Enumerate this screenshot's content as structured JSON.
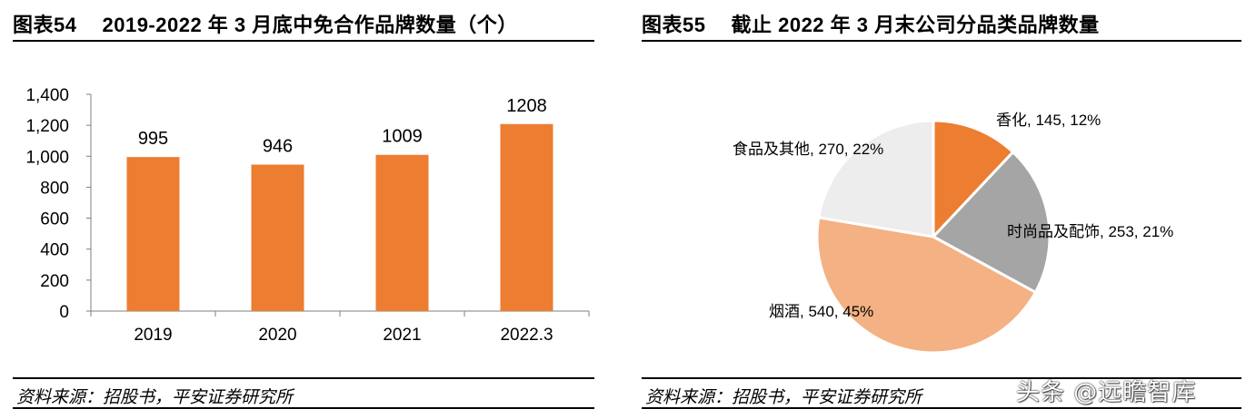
{
  "left_panel": {
    "title_num": "图表54",
    "title_text": "2019-2022 年 3 月底中免合作品牌数量（个）",
    "source": "资料来源：招股书，平安证券研究所"
  },
  "right_panel": {
    "title_num": "图表55",
    "title_text": "截止 2022 年 3 月末公司分品类品牌数量",
    "source": "资料来源：招股书，平安证券研究所"
  },
  "watermark": "头条 @远瞻智库",
  "chart_data": [
    {
      "type": "bar",
      "categories": [
        "2019",
        "2020",
        "2021",
        "2022.3"
      ],
      "values": [
        995,
        946,
        1009,
        1208
      ],
      "data_labels": [
        "995",
        "946",
        "1009",
        "1208"
      ],
      "ylim": [
        0,
        1400
      ],
      "yticks": [
        0,
        200,
        400,
        600,
        800,
        1000,
        1200,
        1400
      ],
      "ytick_labels": [
        "0",
        "200",
        "400",
        "600",
        "800",
        "1,000",
        "1,200",
        "1,400"
      ],
      "grid": false,
      "bar_color": "#ED7D31"
    },
    {
      "type": "pie",
      "labels": [
        "香化",
        "时尚品及配饰",
        "烟酒",
        "食品及其他"
      ],
      "values": [
        145,
        253,
        540,
        270
      ],
      "percents": [
        "12%",
        "21%",
        "45%",
        "22%"
      ],
      "slice_labels": [
        "香化, 145, 12%",
        "时尚品及配饰, 253, 21%",
        "烟酒, 540, 45%",
        "食品及其他, 270, 22%"
      ],
      "colors": [
        "#ED7D31",
        "#A5A5A5",
        "#F4B183",
        "#EDEDED"
      ]
    }
  ]
}
